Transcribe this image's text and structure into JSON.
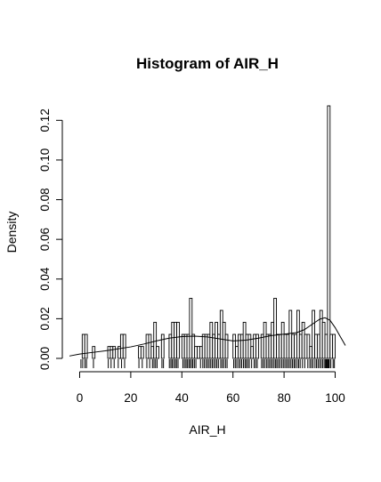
{
  "chart_data": {
    "type": "histogram",
    "title": "Histogram of AIR_H",
    "xlabel": "AIR_H",
    "ylabel": "Density",
    "xlim": [
      -4,
      104
    ],
    "ylim": [
      0,
      0.13
    ],
    "x_ticks": [
      0,
      20,
      40,
      60,
      80,
      100
    ],
    "y_ticks": [
      0.0,
      0.02,
      0.04,
      0.06,
      0.08,
      0.1,
      0.12
    ],
    "y_tick_labels": [
      "0.00",
      "0.02",
      "0.04",
      "0.06",
      "0.08",
      "0.10",
      "0.12"
    ],
    "bin_width": 1,
    "bins_start": 0,
    "densities": [
      0,
      0.0121,
      0.0121,
      0,
      0,
      0.006,
      0,
      0,
      0,
      0,
      0,
      0.006,
      0.006,
      0.006,
      0,
      0.006,
      0.0121,
      0.0121,
      0,
      0,
      0,
      0,
      0,
      0.006,
      0.006,
      0,
      0.0121,
      0.0121,
      0.006,
      0.0182,
      0.006,
      0,
      0.0121,
      0,
      0,
      0.0121,
      0.0182,
      0.0182,
      0.0182,
      0,
      0.0121,
      0.0121,
      0.0121,
      0.0303,
      0.0121,
      0.006,
      0.006,
      0.006,
      0.0121,
      0.0121,
      0.0121,
      0.0182,
      0.0121,
      0.0182,
      0.0121,
      0.0242,
      0.0182,
      0.0121,
      0,
      0,
      0.0121,
      0.006,
      0.0121,
      0.0121,
      0.0182,
      0.0121,
      0.0121,
      0.006,
      0.0121,
      0.0121,
      0,
      0.0121,
      0.0182,
      0.0121,
      0.0121,
      0.0182,
      0.0303,
      0.0121,
      0.0121,
      0.0182,
      0.0121,
      0.0121,
      0.0242,
      0.0121,
      0.0121,
      0.0242,
      0.0121,
      0.0182,
      0.0121,
      0.0121,
      0.006,
      0.0242,
      0.0121,
      0.0121,
      0.0242,
      0.0182,
      0.0121,
      0.1273,
      0.0121,
      0.0121
    ],
    "density_curve": {
      "x": [
        -4,
        0,
        5,
        10,
        15,
        20,
        25,
        30,
        35,
        40,
        45,
        50,
        55,
        60,
        65,
        70,
        75,
        80,
        85,
        88,
        91,
        94,
        96,
        98,
        100,
        102,
        104
      ],
      "y": [
        0.0012,
        0.0022,
        0.003,
        0.0038,
        0.0048,
        0.0058,
        0.0072,
        0.0088,
        0.0102,
        0.011,
        0.0112,
        0.0108,
        0.0098,
        0.0088,
        0.0092,
        0.0102,
        0.0115,
        0.0122,
        0.013,
        0.0145,
        0.0172,
        0.0198,
        0.0205,
        0.0192,
        0.0155,
        0.011,
        0.0065
      ]
    },
    "rug": [
      0.5,
      1.2,
      2.1,
      2.7,
      5.4,
      11.2,
      12.3,
      13.5,
      15.1,
      16.4,
      17.6,
      23.2,
      24.5,
      26.3,
      27.4,
      28.5,
      29.1,
      29.7,
      30.3,
      32.2,
      32.8,
      35.1,
      35.7,
      36.2,
      36.8,
      37.4,
      37.9,
      38.5,
      40.4,
      41.0,
      41.6,
      42.1,
      42.7,
      43.2,
      43.8,
      44.3,
      44.9,
      45.5,
      47.3,
      48.2,
      48.8,
      49.5,
      50.1,
      50.7,
      51.3,
      51.9,
      52.5,
      53.1,
      53.7,
      54.3,
      55.2,
      55.8,
      56.4,
      57.1,
      57.7,
      60.3,
      60.9,
      61.5,
      62.2,
      62.8,
      63.4,
      64.1,
      64.7,
      65.2,
      65.8,
      66.4,
      67.3,
      68.3,
      68.9,
      69.5,
      71.2,
      71.8,
      72.4,
      73.1,
      73.7,
      74.3,
      74.9,
      75.5,
      76.1,
      76.7,
      77.2,
      77.8,
      78.4,
      79.1,
      79.7,
      80.3,
      80.9,
      81.5,
      82.1,
      82.7,
      83.3,
      83.9,
      84.4,
      85.1,
      85.7,
      86.3,
      87.2,
      88.1,
      89.3,
      90.1,
      90.7,
      91.3,
      92.1,
      92.7,
      93.3,
      93.9,
      94.5,
      95.1,
      95.7,
      96.2,
      96.5,
      96.8,
      97.1,
      97.4,
      97.7,
      98.3,
      99.2,
      99.7
    ]
  }
}
